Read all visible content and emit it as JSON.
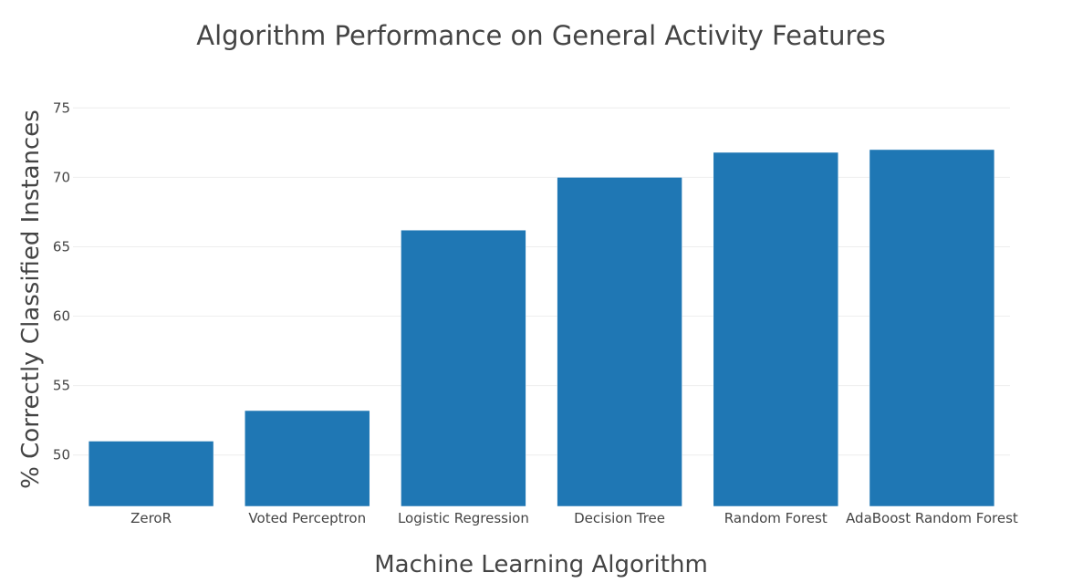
{
  "chart_data": {
    "type": "bar",
    "title": "Algorithm Performance on General Activity Features",
    "xlabel": "Machine Learning Algorithm",
    "ylabel": "% Correctly Classified Instances",
    "categories": [
      "ZeroR",
      "Voted Perceptron",
      "Logistic Regression",
      "Decision Tree",
      "Random Forest",
      "AdaBoost Random Forest"
    ],
    "values": [
      51.0,
      53.2,
      66.2,
      70.0,
      71.8,
      72.0
    ],
    "ylim": [
      46.3,
      76.4
    ],
    "yticks": [
      50,
      55,
      60,
      65,
      70,
      75
    ],
    "grid": true,
    "bar_color": "#1f77b4"
  }
}
